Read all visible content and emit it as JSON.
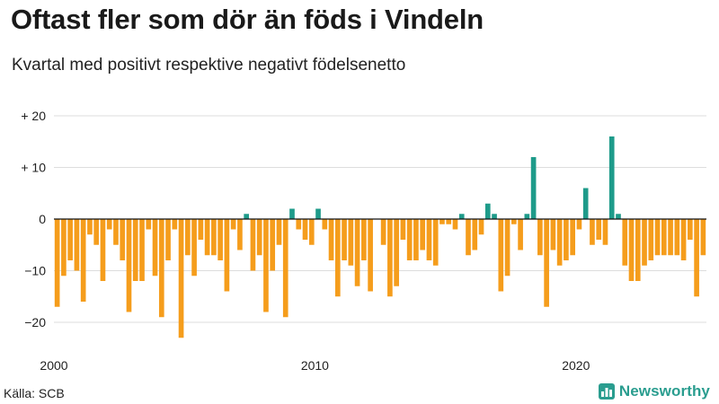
{
  "chart_data": {
    "type": "bar",
    "title": "Oftast fler som dör än föds i Vindeln",
    "subtitle": "Kvartal med positivt respektive negativt födelsenetto",
    "xlabel": "",
    "ylabel": "",
    "x_start": 2000,
    "periods_per_year": 4,
    "x_ticks": [
      2000,
      2010,
      2020
    ],
    "y_ticks": [
      20,
      10,
      0,
      -10,
      -20
    ],
    "y_tick_labels": [
      "+ 20",
      "+ 10",
      "0",
      "−10",
      "−20"
    ],
    "ylim": [
      -24,
      20
    ],
    "grid": true,
    "colors": {
      "positive": "#1e9b8a",
      "negative": "#f59d1c"
    },
    "values": [
      -17,
      -11,
      -8,
      -10,
      -16,
      -3,
      -5,
      -12,
      -2,
      -5,
      -8,
      -18,
      -12,
      -12,
      -2,
      -11,
      -19,
      -8,
      -2,
      -23,
      -7,
      -11,
      -4,
      -7,
      -7,
      -8,
      -14,
      -2,
      -6,
      1,
      -10,
      -7,
      -18,
      -10,
      -5,
      -19,
      2,
      -2,
      -4,
      -5,
      2,
      -2,
      -8,
      -15,
      -8,
      -9,
      -13,
      -8,
      -14,
      0,
      -5,
      -15,
      -13,
      -4,
      -8,
      -8,
      -6,
      -8,
      -9,
      -1,
      -1,
      -2,
      1,
      -7,
      -6,
      -3,
      3,
      1,
      -14,
      -11,
      -1,
      -6,
      1,
      12,
      -7,
      -17,
      -6,
      -9,
      -8,
      -7,
      -2,
      6,
      -5,
      -4,
      -5,
      16,
      1,
      -9,
      -12,
      -12,
      -9,
      -8,
      -7,
      -7,
      -7,
      -7,
      -8,
      -4,
      -15,
      -7
    ]
  },
  "footer": {
    "source": "Källa: SCB",
    "brand": "Newsworthy"
  }
}
